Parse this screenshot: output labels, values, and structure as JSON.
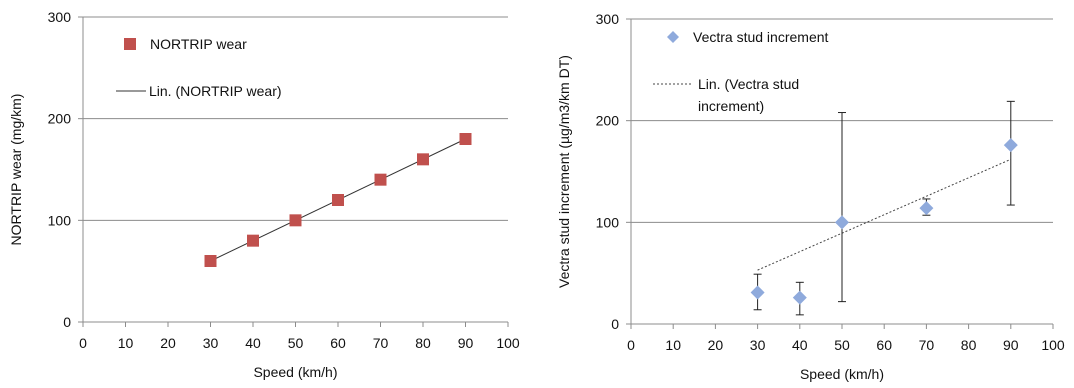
{
  "chart_data": [
    {
      "type": "scatter",
      "xlabel": "Speed (km/h)",
      "ylabel": "NORTRIP wear (mg/km)",
      "xlim": [
        0,
        100
      ],
      "ylim": [
        0,
        300
      ],
      "xticks": [
        0,
        10,
        20,
        30,
        40,
        50,
        60,
        70,
        80,
        90,
        100
      ],
      "yticks": [
        0,
        100,
        200,
        300
      ],
      "grid": "horizontal",
      "legend_position": "top-left",
      "series": [
        {
          "name": "NORTRIP wear",
          "marker": "square",
          "color": "#c0504d",
          "x": [
            30,
            40,
            50,
            60,
            70,
            80,
            90
          ],
          "y": [
            60,
            80,
            100,
            120,
            140,
            160,
            180
          ]
        }
      ],
      "trendline": {
        "name": "Lin. (NORTRIP wear)",
        "style": "solid",
        "color": "#333333",
        "x": [
          30,
          90
        ],
        "y": [
          60,
          180
        ]
      }
    },
    {
      "type": "scatter",
      "xlabel": "Speed (km/h)",
      "ylabel": "Vectra stud increment (µg/m3/km DT)",
      "xlim": [
        0,
        100
      ],
      "ylim": [
        0,
        300
      ],
      "xticks": [
        0,
        10,
        20,
        30,
        40,
        50,
        60,
        70,
        80,
        90,
        100
      ],
      "yticks": [
        0,
        100,
        200,
        300
      ],
      "grid": "horizontal",
      "legend_position": "top-left",
      "series": [
        {
          "name": "Vectra stud increment",
          "marker": "diamond",
          "color": "#8faadc",
          "x": [
            30,
            40,
            50,
            70,
            90
          ],
          "y": [
            31,
            26,
            100,
            114,
            176
          ],
          "err_low": [
            14,
            9,
            22,
            107,
            117
          ],
          "err_high": [
            49,
            41,
            208,
            123,
            219
          ]
        }
      ],
      "trendline": {
        "name": "Lin. (Vectra stud increment)",
        "name_lines": [
          "Lin. (Vectra stud",
          "increment)"
        ],
        "style": "dotted",
        "color": "#444444",
        "x": [
          30,
          90
        ],
        "y": [
          53,
          162
        ]
      }
    }
  ]
}
